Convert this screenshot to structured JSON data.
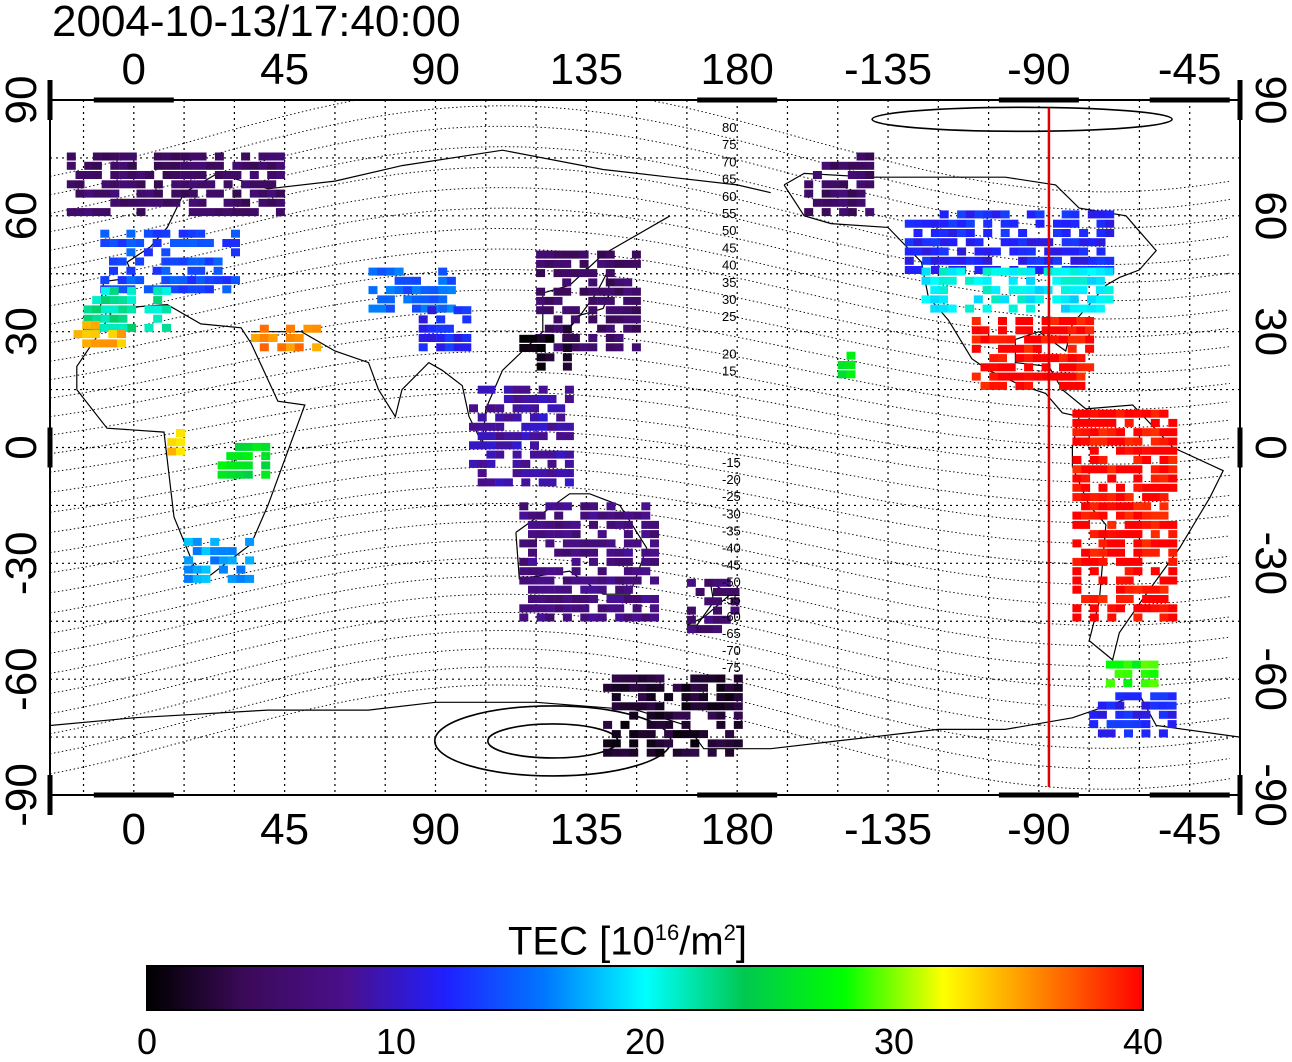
{
  "title": "2004-10-13/17:40:00",
  "map": {
    "lon_ticks": [
      "0",
      "45",
      "90",
      "135",
      "180",
      "-135",
      "-90",
      "-45"
    ],
    "lat_ticks": [
      "90",
      "60",
      "30",
      "0",
      "-30",
      "-60",
      "-90"
    ],
    "lon_range": [
      -25,
      330
    ],
    "lat_range": [
      -90,
      90
    ],
    "marker_longitude": -87,
    "marker_color": "#e00000",
    "contour_labels": [
      "80",
      "75",
      "70",
      "65",
      "60",
      "55",
      "50",
      "45",
      "40",
      "35",
      "30",
      "25",
      "20",
      "15",
      "-15",
      "-20",
      "-25",
      "-30",
      "-35",
      "-40",
      "-45",
      "-50",
      "-55",
      "-60",
      "-65",
      "-70",
      "-75"
    ]
  },
  "colorbar": {
    "title_main": "TEC  [10",
    "title_exp1": "16",
    "title_mid": "/m",
    "title_exp2": "2",
    "title_end": "]",
    "ticks": [
      "0",
      "10",
      "20",
      "30",
      "40"
    ],
    "range": [
      0,
      40
    ],
    "colors": [
      "#000000",
      "#3c0a5a",
      "#4a0f8c",
      "#2020ff",
      "#0078ff",
      "#00ffff",
      "#00c850",
      "#00ff00",
      "#ffff00",
      "#ff8000",
      "#ff0000"
    ]
  },
  "chart_data": {
    "type": "heatmap",
    "title": "2004-10-13/17:40:00",
    "xlabel": "",
    "ylabel": "",
    "xlim": [
      -25,
      330
    ],
    "ylim": [
      -90,
      90
    ],
    "value_label": "TEC [10^16/m^2]",
    "vlim": [
      0,
      40
    ],
    "regions": [
      {
        "lon": [
          -20,
          45
        ],
        "lat": [
          60,
          75
        ],
        "tec": 5
      },
      {
        "lon": [
          -10,
          30
        ],
        "lat": [
          40,
          55
        ],
        "tec": 14
      },
      {
        "lon": [
          -15,
          10
        ],
        "lat": [
          30,
          40
        ],
        "tec": 22
      },
      {
        "lon": [
          -18,
          -5
        ],
        "lat": [
          26,
          32
        ],
        "tec": 34
      },
      {
        "lon": [
          35,
          55
        ],
        "lat": [
          25,
          32
        ],
        "tec": 36
      },
      {
        "lon": [
          10,
          15
        ],
        "lat": [
          -2,
          4
        ],
        "tec": 34
      },
      {
        "lon": [
          25,
          40
        ],
        "lat": [
          -8,
          0
        ],
        "tec": 26
      },
      {
        "lon": [
          15,
          35
        ],
        "lat": [
          -35,
          -25
        ],
        "tec": 17
      },
      {
        "lon": [
          70,
          95
        ],
        "lat": [
          35,
          45
        ],
        "tec": 15
      },
      {
        "lon": [
          85,
          100
        ],
        "lat": [
          25,
          35
        ],
        "tec": 12
      },
      {
        "lon": [
          120,
          150
        ],
        "lat": [
          25,
          50
        ],
        "tec": 5
      },
      {
        "lon": [
          115,
          130
        ],
        "lat": [
          20,
          30
        ],
        "tec": 1
      },
      {
        "lon": [
          100,
          130
        ],
        "lat": [
          -10,
          15
        ],
        "tec": 9
      },
      {
        "lon": [
          115,
          155
        ],
        "lat": [
          -45,
          -15
        ],
        "tec": 7
      },
      {
        "lon": [
          165,
          178
        ],
        "lat": [
          -48,
          -35
        ],
        "tec": 6
      },
      {
        "lon": [
          140,
          180
        ],
        "lat": [
          -80,
          -60
        ],
        "tec": 2
      },
      {
        "lon": [
          -130,
          -70
        ],
        "lat": [
          45,
          60
        ],
        "tec": 12
      },
      {
        "lon": [
          -125,
          -70
        ],
        "lat": [
          35,
          45
        ],
        "tec": 20
      },
      {
        "lon": [
          -110,
          -75
        ],
        "lat": [
          15,
          32
        ],
        "tec": 40
      },
      {
        "lon": [
          -80,
          -50
        ],
        "lat": [
          -45,
          10
        ],
        "tec": 40
      },
      {
        "lon": [
          -70,
          -55
        ],
        "lat": [
          -62,
          -55
        ],
        "tec": 28
      },
      {
        "lon": [
          -75,
          -50
        ],
        "lat": [
          -75,
          -65
        ],
        "tec": 12
      },
      {
        "lon": [
          -160,
          -140
        ],
        "lat": [
          60,
          75
        ],
        "tec": 5
      },
      {
        "lon": [
          -150,
          -145
        ],
        "lat": [
          18,
          24
        ],
        "tec": 26
      }
    ]
  }
}
